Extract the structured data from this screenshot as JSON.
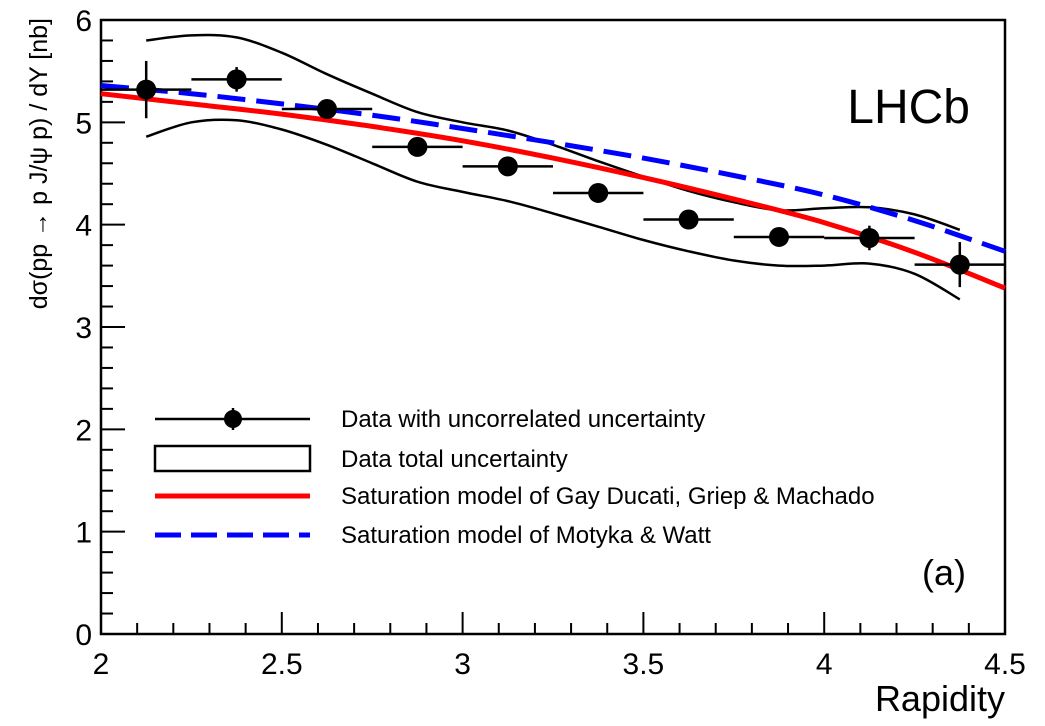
{
  "chart_data": {
    "type": "line",
    "xlabel": "Rapidity",
    "ylabel": "dσ(pp → p J/ψ p) / dY [nb]",
    "xlim": [
      2,
      4.5
    ],
    "ylim": [
      0,
      6
    ],
    "x_ticks": [
      "2",
      "2.5",
      "3",
      "3.5",
      "4",
      "4.5"
    ],
    "y_ticks": [
      "0",
      "1",
      "2",
      "3",
      "4",
      "5",
      "6"
    ],
    "experiment_label": "LHCb",
    "panel_label": "(a)",
    "grid": false,
    "legend_position": "bottom-left",
    "legend": [
      "Data with uncorrelated uncertainty",
      "Data total uncertainty",
      "Saturation model of Gay Ducati, Griep & Machado",
      "Saturation model of Motyka & Watt"
    ],
    "data_points": {
      "x": [
        2.125,
        2.375,
        2.625,
        2.875,
        3.125,
        3.375,
        3.625,
        3.875,
        4.125,
        4.375
      ],
      "y": [
        5.32,
        5.42,
        5.13,
        4.76,
        4.57,
        4.31,
        4.05,
        3.88,
        3.87,
        3.61
      ],
      "x_half_width": 0.125,
      "y_err": [
        0.28,
        0.12,
        0.08,
        0.07,
        0.07,
        0.07,
        0.07,
        0.08,
        0.12,
        0.22
      ]
    },
    "total_uncertainty_band": {
      "x": [
        2.125,
        2.25,
        2.375,
        2.5,
        2.625,
        2.75,
        2.875,
        3.0,
        3.125,
        3.25,
        3.375,
        3.5,
        3.625,
        3.75,
        3.875,
        4.0,
        4.125,
        4.25,
        4.375
      ],
      "upper": [
        5.8,
        5.85,
        5.83,
        5.68,
        5.47,
        5.28,
        5.1,
        5.0,
        4.92,
        4.78,
        4.62,
        4.47,
        4.33,
        4.22,
        4.14,
        4.16,
        4.17,
        4.1,
        3.95
      ],
      "lower": [
        4.86,
        5.0,
        5.02,
        4.93,
        4.78,
        4.6,
        4.42,
        4.32,
        4.23,
        4.11,
        3.98,
        3.85,
        3.74,
        3.65,
        3.6,
        3.6,
        3.62,
        3.52,
        3.27
      ]
    },
    "series": [
      {
        "name": "Saturation model of Gay Ducati, Griep & Machado",
        "color": "#ff0000",
        "style": "solid",
        "x": [
          2.0,
          2.25,
          2.5,
          2.75,
          3.0,
          3.25,
          3.5,
          3.75,
          4.0,
          4.25,
          4.5
        ],
        "y": [
          5.28,
          5.18,
          5.08,
          4.96,
          4.82,
          4.65,
          4.46,
          4.25,
          4.02,
          3.73,
          3.38
        ]
      },
      {
        "name": "Saturation model of Motyka & Watt",
        "color": "#0000ff",
        "style": "dashed",
        "x": [
          2.0,
          2.25,
          2.5,
          2.75,
          3.0,
          3.25,
          3.5,
          3.75,
          4.0,
          4.25,
          4.5
        ],
        "y": [
          5.36,
          5.28,
          5.18,
          5.07,
          4.94,
          4.8,
          4.65,
          4.48,
          4.29,
          4.04,
          3.74
        ]
      }
    ]
  }
}
